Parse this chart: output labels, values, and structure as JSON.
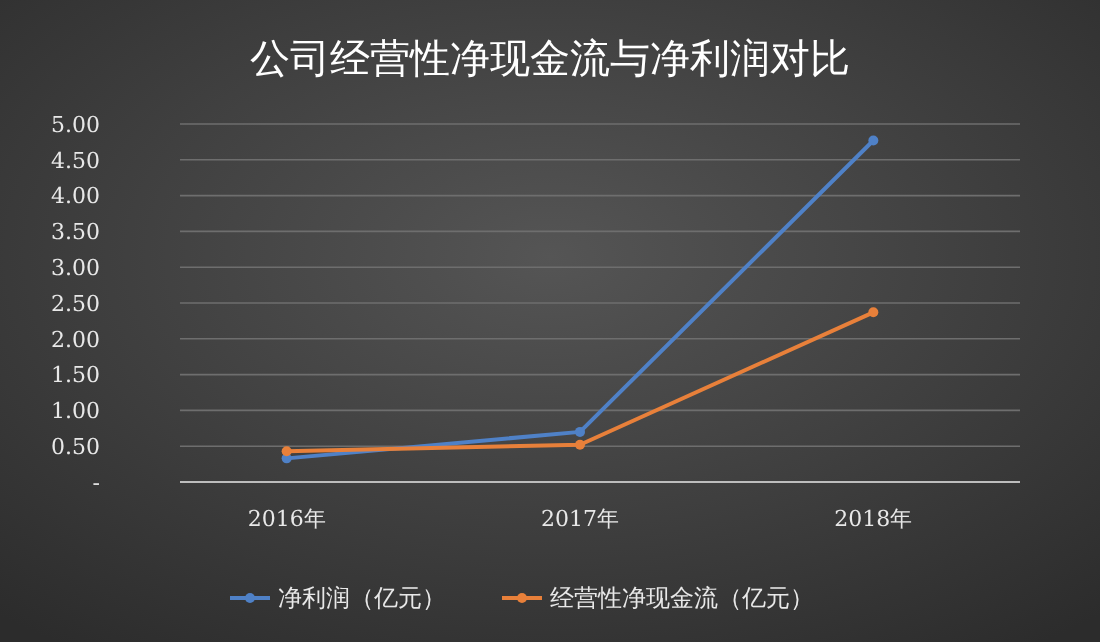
{
  "chart_data": {
    "type": "line",
    "title": "公司经营性净现金流与净利润对比",
    "categories": [
      "2016年",
      "2017年",
      "2018年"
    ],
    "series": [
      {
        "name": "净利润（亿元）",
        "color": "#4f81c7",
        "values": [
          0.33,
          0.7,
          4.77
        ]
      },
      {
        "name": "经营性净现金流（亿元）",
        "color": "#e8803a",
        "values": [
          0.43,
          0.52,
          2.37
        ]
      }
    ],
    "ylim": [
      0,
      5
    ],
    "yticks": [
      {
        "value": 0,
        "label": "-"
      },
      {
        "value": 0.5,
        "label": "0.50"
      },
      {
        "value": 1,
        "label": "1.00"
      },
      {
        "value": 1.5,
        "label": "1.50"
      },
      {
        "value": 2,
        "label": "2.00"
      },
      {
        "value": 2.5,
        "label": "2.50"
      },
      {
        "value": 3,
        "label": "3.00"
      },
      {
        "value": 3.5,
        "label": "3.50"
      },
      {
        "value": 4,
        "label": "4.00"
      },
      {
        "value": 4.5,
        "label": "4.50"
      },
      {
        "value": 5,
        "label": "5.00"
      }
    ],
    "grid": "y",
    "legend": "bottom",
    "marker": "circle",
    "line_style": "solid"
  }
}
